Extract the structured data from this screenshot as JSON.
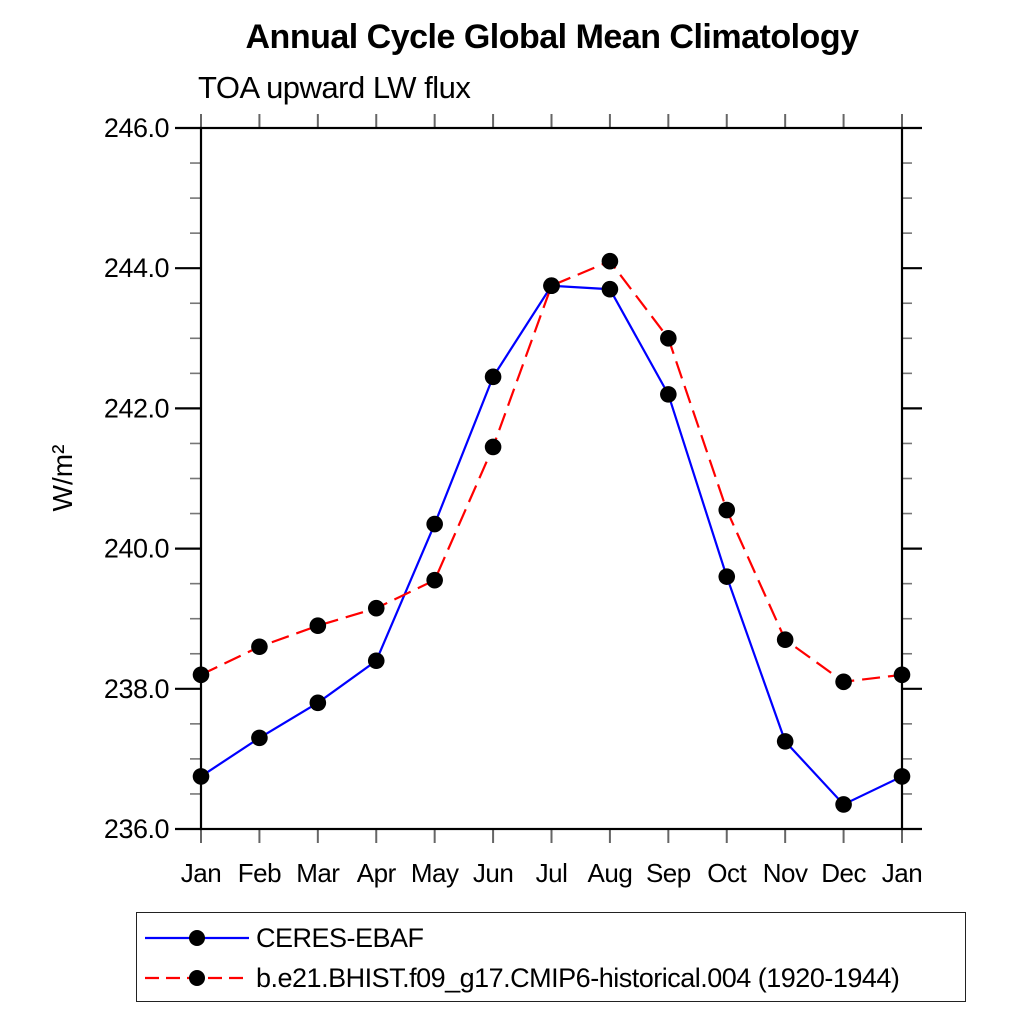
{
  "chart_data": {
    "type": "line",
    "title": "Annual Cycle Global Mean Climatology",
    "subtitle": "TOA upward LW flux",
    "ylabel": "W/m²",
    "xlabel": "",
    "categories": [
      "Jan",
      "Feb",
      "Mar",
      "Apr",
      "May",
      "Jun",
      "Jul",
      "Aug",
      "Sep",
      "Oct",
      "Nov",
      "Dec",
      "Jan"
    ],
    "ylim": [
      236.0,
      246.0
    ],
    "yticks": {
      "values": [
        236,
        238,
        240,
        242,
        244,
        246
      ],
      "labels": [
        "236.0",
        "238.0",
        "240.0",
        "242.0",
        "244.0",
        "246.0"
      ]
    },
    "ytick_minor_step": 0.5,
    "grid": false,
    "legend_position": "bottom-left",
    "axis_color": "#000000",
    "minor_tick_color": "#777777",
    "month_tick_color": "#666666",
    "series": [
      {
        "name": "CERES-EBAF",
        "color": "#0000ff",
        "line_style": "solid",
        "marker": "circle",
        "marker_color": "#000000",
        "values": [
          236.75,
          237.3,
          237.8,
          238.4,
          240.35,
          242.45,
          243.75,
          243.7,
          242.2,
          239.6,
          237.25,
          236.35,
          236.75
        ]
      },
      {
        "name": "b.e21.BHIST.f09_g17.CMIP6-historical.004 (1920-1944)",
        "color": "#ff0000",
        "line_style": "dashed",
        "marker": "circle",
        "marker_color": "#000000",
        "values": [
          238.2,
          238.6,
          238.9,
          239.15,
          239.55,
          241.45,
          243.75,
          244.1,
          243.0,
          240.55,
          238.7,
          238.1,
          238.2
        ]
      }
    ]
  }
}
